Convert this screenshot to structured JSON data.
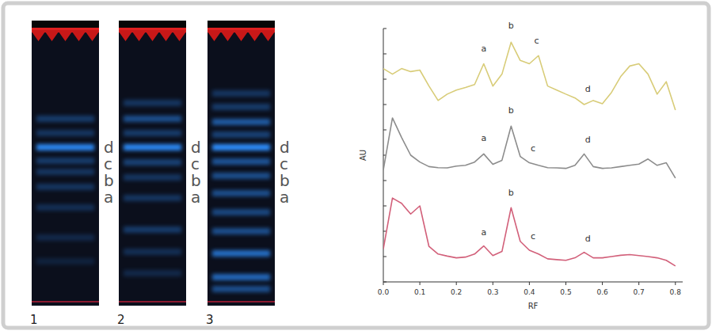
{
  "tlc_plate": {
    "lanes": [
      {
        "number": "1",
        "band_labels": [
          "d",
          "c",
          "b",
          "a"
        ]
      },
      {
        "number": "2",
        "band_labels": [
          "d",
          "c",
          "b",
          "a"
        ]
      },
      {
        "number": "3",
        "band_labels": [
          "d",
          "c",
          "b",
          "a"
        ]
      }
    ]
  },
  "chart_data": {
    "type": "line",
    "x_label": "RF",
    "y_label": "AU",
    "x": [
      0,
      0.025,
      0.05,
      0.075,
      0.1,
      0.125,
      0.15,
      0.175,
      0.2,
      0.225,
      0.25,
      0.275,
      0.3,
      0.325,
      0.35,
      0.375,
      0.4,
      0.425,
      0.45,
      0.475,
      0.5,
      0.525,
      0.55,
      0.575,
      0.6,
      0.625,
      0.65,
      0.675,
      0.7,
      0.725,
      0.75,
      0.775,
      0.8
    ],
    "series": [
      {
        "color": "#d8cc78",
        "values": [
          8.42,
          8.2,
          8.42,
          8.3,
          8.36,
          7.73,
          7.16,
          7.41,
          7.57,
          7.67,
          7.79,
          8.61,
          7.73,
          8.2,
          9.46,
          8.74,
          8.61,
          8.93,
          7.73,
          7.57,
          7.41,
          7.26,
          7.0,
          7.16,
          7.03,
          7.48,
          8.1,
          8.52,
          8.61,
          8.2,
          7.41,
          7.9,
          6.78
        ]
      },
      {
        "color": "#8c8c8c",
        "values": [
          4.42,
          6.47,
          5.7,
          5.0,
          4.73,
          4.55,
          4.51,
          4.5,
          4.57,
          4.6,
          4.73,
          5.05,
          4.64,
          4.8,
          6.15,
          4.95,
          4.7,
          4.6,
          4.51,
          4.5,
          4.48,
          4.6,
          5.05,
          4.55,
          4.48,
          4.5,
          4.55,
          4.6,
          4.65,
          4.85,
          4.6,
          4.7,
          4.1
        ]
      },
      {
        "color": "#d2607a",
        "values": [
          1.3,
          3.31,
          3.1,
          2.68,
          3.0,
          1.4,
          1.1,
          1.02,
          0.95,
          0.98,
          1.1,
          1.42,
          1.04,
          1.2,
          2.93,
          1.6,
          1.25,
          1.1,
          0.91,
          0.88,
          0.85,
          0.95,
          1.17,
          0.95,
          0.95,
          1.0,
          1.05,
          1.08,
          1.04,
          1.0,
          0.95,
          0.85,
          0.63
        ]
      }
    ],
    "annotations": [
      {
        "text": "a",
        "x": 0.275,
        "y": 9.1
      },
      {
        "text": "b",
        "x": 0.35,
        "y": 10.0
      },
      {
        "text": "c",
        "x": 0.42,
        "y": 9.4
      },
      {
        "text": "d",
        "x": 0.56,
        "y": 7.5
      },
      {
        "text": "a",
        "x": 0.275,
        "y": 5.55
      },
      {
        "text": "b",
        "x": 0.35,
        "y": 6.65
      },
      {
        "text": "c",
        "x": 0.41,
        "y": 5.15
      },
      {
        "text": "d",
        "x": 0.56,
        "y": 5.5
      },
      {
        "text": "a",
        "x": 0.275,
        "y": 1.85
      },
      {
        "text": "b",
        "x": 0.35,
        "y": 3.4
      },
      {
        "text": "c",
        "x": 0.41,
        "y": 1.7
      },
      {
        "text": "d",
        "x": 0.56,
        "y": 1.6
      }
    ],
    "xlim": [
      0,
      0.82
    ],
    "xticks": [
      {
        "value": 0,
        "label": "0.0"
      },
      0.1,
      0.2,
      0.3,
      0.4,
      0.5,
      0.6,
      0.7,
      0.8
    ],
    "ylim": [
      0,
      10
    ],
    "yticks": [
      0,
      1,
      2,
      3,
      4,
      5,
      6,
      7,
      8,
      9,
      10
    ],
    "tick_labels": "x",
    "grid": false
  }
}
